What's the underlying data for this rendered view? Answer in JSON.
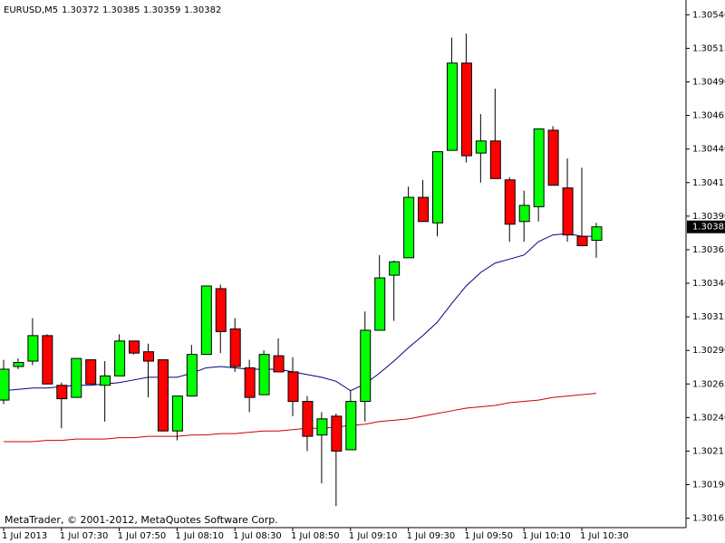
{
  "chart_data": {
    "type": "candlestick",
    "symbol": "EURUSD,M5",
    "footer": "MetaTrader, © 2001-2012, MetaQuotes Software Corp.",
    "categories": [
      "1 Jul 2013",
      null,
      null,
      null,
      "1 Jul 07:30",
      null,
      null,
      null,
      "1 Jul 07:50",
      null,
      null,
      null,
      "1 Jul 08:10",
      null,
      null,
      null,
      "1 Jul 08:30",
      null,
      null,
      null,
      "1 Jul 08:50",
      null,
      null,
      null,
      "1 Jul 09:10",
      null,
      null,
      null,
      "1 Jul 09:30",
      null,
      null,
      null,
      "1 Jul 09:50",
      null,
      null,
      null,
      "1 Jul 10:10",
      null,
      null,
      null,
      "1 Jul 10:30",
      null
    ],
    "open": [
      1.30253,
      1.30278,
      1.30282,
      1.30301,
      1.30264,
      1.30255,
      1.30283,
      1.30264,
      1.30271,
      1.30297,
      1.30289,
      1.30283,
      1.3023,
      1.30256,
      1.30287,
      1.30336,
      1.30306,
      1.30277,
      1.30257,
      1.30286,
      1.30274,
      1.30252,
      1.30227,
      1.30241,
      1.30216,
      1.30252,
      1.30305,
      1.30346,
      1.30359,
      1.30404,
      1.30385,
      1.30439,
      1.30504,
      1.30437,
      1.30446,
      1.30417,
      1.30386,
      1.30397,
      1.30454,
      1.30411,
      1.30375,
      1.30372
    ],
    "high": [
      1.30283,
      1.30284,
      1.30314,
      1.30302,
      1.30266,
      1.30284,
      1.30283,
      1.30282,
      1.30302,
      1.30297,
      1.30295,
      1.30283,
      1.30256,
      1.30294,
      1.30338,
      1.30339,
      1.30314,
      1.30283,
      1.3029,
      1.30299,
      1.30285,
      1.30256,
      1.30244,
      1.30243,
      1.3026,
      1.30319,
      1.30361,
      1.30357,
      1.30412,
      1.30417,
      1.30438,
      1.30523,
      1.30526,
      1.30466,
      1.30485,
      1.30419,
      1.30409,
      1.30455,
      1.30457,
      1.30433,
      1.30426,
      1.30385
    ],
    "low": [
      1.3025,
      1.30276,
      1.30279,
      1.30265,
      1.30232,
      1.30255,
      1.30265,
      1.30237,
      1.30271,
      1.30287,
      1.30255,
      1.3023,
      1.30223,
      1.30256,
      1.30287,
      1.30288,
      1.30274,
      1.30244,
      1.30257,
      1.30274,
      1.30241,
      1.30215,
      1.30191,
      1.30174,
      1.30216,
      1.30237,
      1.30305,
      1.30312,
      1.30359,
      1.30386,
      1.30375,
      1.30439,
      1.3043,
      1.30415,
      1.30418,
      1.30371,
      1.30371,
      1.30386,
      1.30413,
      1.30371,
      1.30368,
      1.30359
    ],
    "close": [
      1.30276,
      1.30281,
      1.30301,
      1.30265,
      1.30254,
      1.30284,
      1.30265,
      1.30271,
      1.30297,
      1.30288,
      1.30282,
      1.3023,
      1.30256,
      1.30287,
      1.30338,
      1.30304,
      1.30278,
      1.30255,
      1.30287,
      1.30274,
      1.30252,
      1.30226,
      1.30239,
      1.30215,
      1.30252,
      1.30305,
      1.30344,
      1.30356,
      1.30404,
      1.30386,
      1.30438,
      1.30504,
      1.30435,
      1.30446,
      1.30418,
      1.30384,
      1.30398,
      1.30455,
      1.30413,
      1.30376,
      1.30368,
      1.30382
    ],
    "up_color": "#00ff00",
    "down_color": "#ff0000",
    "series": [
      {
        "color": "#000080",
        "values": [
          1.3026,
          1.30261,
          1.30262,
          1.30262,
          1.30263,
          1.30264,
          1.30264,
          1.30265,
          1.30266,
          1.30268,
          1.3027,
          1.3027,
          1.3027,
          1.30273,
          1.30277,
          1.30278,
          1.30277,
          1.30276,
          1.30276,
          1.30276,
          1.30274,
          1.30272,
          1.3027,
          1.30267,
          1.3026,
          1.30265,
          1.30273,
          1.30282,
          1.30292,
          1.30301,
          1.30311,
          1.30325,
          1.30338,
          1.30348,
          1.30355,
          1.30358,
          1.30361,
          1.30371,
          1.30376,
          1.30377,
          1.30375,
          1.30375
        ]
      },
      {
        "color": "#cc0000",
        "values": [
          1.30222,
          1.30222,
          1.30222,
          1.30223,
          1.30223,
          1.30224,
          1.30224,
          1.30224,
          1.30225,
          1.30225,
          1.30226,
          1.30226,
          1.30226,
          1.30227,
          1.30227,
          1.30228,
          1.30228,
          1.30229,
          1.3023,
          1.3023,
          1.30231,
          1.30232,
          1.30232,
          1.30233,
          1.30234,
          1.30235,
          1.30237,
          1.30238,
          1.30239,
          1.30241,
          1.30243,
          1.30245,
          1.30247,
          1.30248,
          1.30249,
          1.30251,
          1.30252,
          1.30253,
          1.30255,
          1.30256,
          1.30257,
          1.30258
        ]
      }
    ],
    "last_price": 1.30382,
    "ylim": [
      1.30158,
      1.30551
    ],
    "yticks": [
      {
        "value": 1.3054,
        "label": "1.30540"
      },
      1.30515,
      {
        "value": 1.3049,
        "label": "1.30490"
      },
      1.30465,
      {
        "value": 1.3044,
        "label": "1.30440"
      },
      1.30415,
      {
        "value": 1.3039,
        "label": "1.30390"
      },
      1.30365,
      {
        "value": 1.3034,
        "label": "1.30340"
      },
      1.30315,
      {
        "value": 1.3029,
        "label": "1.30290"
      },
      1.30265,
      {
        "value": 1.3024,
        "label": "1.30240"
      },
      1.30215,
      {
        "value": 1.3019,
        "label": "1.30190"
      },
      1.30165
    ]
  }
}
